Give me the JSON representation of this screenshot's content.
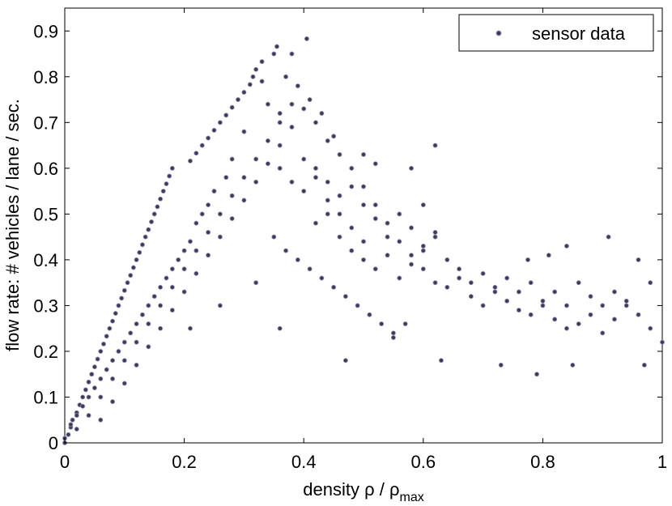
{
  "chart_data": {
    "type": "scatter",
    "title": "",
    "xlabel": {
      "base": "density ",
      "rho": "ρ",
      "sep": " / ",
      "rho2": "ρ",
      "sub": "max"
    },
    "ylabel": "flow rate: # vehicles / lane / sec.",
    "xlim": [
      0,
      1
    ],
    "ylim": [
      0,
      0.95
    ],
    "xticks": [
      "0",
      "0.2",
      "0.4",
      "0.6",
      "0.8",
      "1"
    ],
    "xtick_values": [
      0,
      0.2,
      0.4,
      0.6,
      0.8,
      1
    ],
    "yticks": [
      "0",
      "0.1",
      "0.2",
      "0.3",
      "0.4",
      "0.5",
      "0.6",
      "0.7",
      "0.8",
      "0.9"
    ],
    "ytick_values": [
      0,
      0.1,
      0.2,
      0.3,
      0.4,
      0.5,
      0.6,
      0.7,
      0.8,
      0.9
    ],
    "grid": false,
    "legend_position": "top-right",
    "marker_color": "#3c3c5a",
    "series": [
      {
        "name": "sensor data",
        "points": [
          [
            0.0,
            0.0
          ],
          [
            0.0,
            0.01
          ],
          [
            0.006,
            0.018
          ],
          [
            0.01,
            0.034
          ],
          [
            0.013,
            0.05
          ],
          [
            0.02,
            0.066
          ],
          [
            0.025,
            0.083
          ],
          [
            0.03,
            0.1
          ],
          [
            0.035,
            0.116
          ],
          [
            0.04,
            0.133
          ],
          [
            0.045,
            0.15
          ],
          [
            0.05,
            0.166
          ],
          [
            0.055,
            0.183
          ],
          [
            0.06,
            0.2
          ],
          [
            0.065,
            0.216
          ],
          [
            0.07,
            0.233
          ],
          [
            0.075,
            0.25
          ],
          [
            0.08,
            0.266
          ],
          [
            0.085,
            0.283
          ],
          [
            0.09,
            0.3
          ],
          [
            0.095,
            0.316
          ],
          [
            0.1,
            0.333
          ],
          [
            0.105,
            0.35
          ],
          [
            0.11,
            0.366
          ],
          [
            0.115,
            0.383
          ],
          [
            0.12,
            0.4
          ],
          [
            0.125,
            0.416
          ],
          [
            0.13,
            0.433
          ],
          [
            0.135,
            0.45
          ],
          [
            0.14,
            0.466
          ],
          [
            0.145,
            0.483
          ],
          [
            0.15,
            0.5
          ],
          [
            0.155,
            0.516
          ],
          [
            0.16,
            0.533
          ],
          [
            0.165,
            0.55
          ],
          [
            0.17,
            0.566
          ],
          [
            0.175,
            0.583
          ],
          [
            0.18,
            0.6
          ],
          [
            0.21,
            0.616
          ],
          [
            0.22,
            0.633
          ],
          [
            0.23,
            0.65
          ],
          [
            0.24,
            0.666
          ],
          [
            0.25,
            0.683
          ],
          [
            0.26,
            0.7
          ],
          [
            0.27,
            0.716
          ],
          [
            0.28,
            0.733
          ],
          [
            0.29,
            0.75
          ],
          [
            0.3,
            0.766
          ],
          [
            0.31,
            0.783
          ],
          [
            0.315,
            0.8
          ],
          [
            0.32,
            0.816
          ],
          [
            0.33,
            0.833
          ],
          [
            0.35,
            0.85
          ],
          [
            0.38,
            0.85
          ],
          [
            0.355,
            0.866
          ],
          [
            0.405,
            0.883
          ],
          [
            0.02,
            0.03
          ],
          [
            0.04,
            0.06
          ],
          [
            0.06,
            0.1
          ],
          [
            0.08,
            0.14
          ],
          [
            0.1,
            0.18
          ],
          [
            0.12,
            0.22
          ],
          [
            0.14,
            0.26
          ],
          [
            0.16,
            0.3
          ],
          [
            0.18,
            0.34
          ],
          [
            0.2,
            0.38
          ],
          [
            0.22,
            0.42
          ],
          [
            0.24,
            0.46
          ],
          [
            0.26,
            0.5
          ],
          [
            0.28,
            0.54
          ],
          [
            0.3,
            0.58
          ],
          [
            0.32,
            0.62
          ],
          [
            0.34,
            0.66
          ],
          [
            0.36,
            0.7
          ],
          [
            0.38,
            0.74
          ],
          [
            0.06,
            0.05
          ],
          [
            0.08,
            0.09
          ],
          [
            0.1,
            0.13
          ],
          [
            0.12,
            0.17
          ],
          [
            0.14,
            0.21
          ],
          [
            0.16,
            0.25
          ],
          [
            0.18,
            0.29
          ],
          [
            0.2,
            0.33
          ],
          [
            0.22,
            0.37
          ],
          [
            0.24,
            0.41
          ],
          [
            0.26,
            0.45
          ],
          [
            0.28,
            0.49
          ],
          [
            0.3,
            0.53
          ],
          [
            0.32,
            0.57
          ],
          [
            0.34,
            0.61
          ],
          [
            0.36,
            0.65
          ],
          [
            0.38,
            0.69
          ],
          [
            0.4,
            0.73
          ],
          [
            0.42,
            0.7
          ],
          [
            0.44,
            0.66
          ],
          [
            0.46,
            0.63
          ],
          [
            0.48,
            0.6
          ],
          [
            0.5,
            0.56
          ],
          [
            0.52,
            0.52
          ],
          [
            0.54,
            0.48
          ],
          [
            0.56,
            0.44
          ],
          [
            0.58,
            0.41
          ],
          [
            0.6,
            0.38
          ],
          [
            0.62,
            0.35
          ],
          [
            0.64,
            0.34
          ],
          [
            0.66,
            0.36
          ],
          [
            0.68,
            0.32
          ],
          [
            0.7,
            0.3
          ],
          [
            0.72,
            0.33
          ],
          [
            0.74,
            0.31
          ],
          [
            0.76,
            0.29
          ],
          [
            0.78,
            0.28
          ],
          [
            0.8,
            0.3
          ],
          [
            0.82,
            0.27
          ],
          [
            0.84,
            0.25
          ],
          [
            0.86,
            0.26
          ],
          [
            0.88,
            0.28
          ],
          [
            0.9,
            0.24
          ],
          [
            0.92,
            0.27
          ],
          [
            0.94,
            0.3
          ],
          [
            0.96,
            0.28
          ],
          [
            0.98,
            0.25
          ],
          [
            1.0,
            0.22
          ],
          [
            0.42,
            0.48
          ],
          [
            0.44,
            0.5
          ],
          [
            0.46,
            0.45
          ],
          [
            0.48,
            0.42
          ],
          [
            0.5,
            0.4
          ],
          [
            0.52,
            0.38
          ],
          [
            0.54,
            0.41
          ],
          [
            0.56,
            0.36
          ],
          [
            0.58,
            0.39
          ],
          [
            0.6,
            0.42
          ],
          [
            0.62,
            0.45
          ],
          [
            0.64,
            0.4
          ],
          [
            0.66,
            0.38
          ],
          [
            0.68,
            0.35
          ],
          [
            0.7,
            0.37
          ],
          [
            0.72,
            0.34
          ],
          [
            0.74,
            0.36
          ],
          [
            0.76,
            0.33
          ],
          [
            0.78,
            0.35
          ],
          [
            0.8,
            0.31
          ],
          [
            0.82,
            0.33
          ],
          [
            0.84,
            0.3
          ],
          [
            0.86,
            0.35
          ],
          [
            0.88,
            0.32
          ],
          [
            0.9,
            0.3
          ],
          [
            0.92,
            0.33
          ],
          [
            0.94,
            0.31
          ],
          [
            0.96,
            0.4
          ],
          [
            0.98,
            0.35
          ],
          [
            0.4,
            0.55
          ],
          [
            0.42,
            0.58
          ],
          [
            0.44,
            0.53
          ],
          [
            0.46,
            0.5
          ],
          [
            0.48,
            0.47
          ],
          [
            0.5,
            0.44
          ],
          [
            0.52,
            0.49
          ],
          [
            0.54,
            0.45
          ],
          [
            0.56,
            0.5
          ],
          [
            0.58,
            0.47
          ],
          [
            0.6,
            0.43
          ],
          [
            0.62,
            0.46
          ],
          [
            0.35,
            0.45
          ],
          [
            0.37,
            0.42
          ],
          [
            0.39,
            0.4
          ],
          [
            0.41,
            0.38
          ],
          [
            0.43,
            0.36
          ],
          [
            0.45,
            0.34
          ],
          [
            0.47,
            0.32
          ],
          [
            0.49,
            0.3
          ],
          [
            0.51,
            0.28
          ],
          [
            0.53,
            0.26
          ],
          [
            0.55,
            0.24
          ],
          [
            0.57,
            0.26
          ],
          [
            0.36,
            0.6
          ],
          [
            0.38,
            0.57
          ],
          [
            0.4,
            0.62
          ],
          [
            0.42,
            0.6
          ],
          [
            0.44,
            0.57
          ],
          [
            0.46,
            0.54
          ],
          [
            0.48,
            0.56
          ],
          [
            0.5,
            0.52
          ],
          [
            0.26,
            0.3
          ],
          [
            0.21,
            0.25
          ],
          [
            0.32,
            0.35
          ],
          [
            0.36,
            0.25
          ],
          [
            0.47,
            0.18
          ],
          [
            0.55,
            0.23
          ],
          [
            0.63,
            0.18
          ],
          [
            0.73,
            0.17
          ],
          [
            0.79,
            0.15
          ],
          [
            0.85,
            0.17
          ],
          [
            0.97,
            0.17
          ],
          [
            0.91,
            0.45
          ],
          [
            0.84,
            0.43
          ],
          [
            0.81,
            0.41
          ],
          [
            0.775,
            0.4
          ],
          [
            0.6,
            0.52
          ],
          [
            0.62,
            0.65
          ],
          [
            0.58,
            0.6
          ],
          [
            0.52,
            0.61
          ],
          [
            0.5,
            0.63
          ],
          [
            0.45,
            0.67
          ],
          [
            0.43,
            0.72
          ],
          [
            0.41,
            0.75
          ],
          [
            0.37,
            0.8
          ],
          [
            0.39,
            0.78
          ],
          [
            0.33,
            0.79
          ],
          [
            0.34,
            0.74
          ],
          [
            0.36,
            0.72
          ],
          [
            0.3,
            0.68
          ],
          [
            0.28,
            0.62
          ],
          [
            0.27,
            0.58
          ],
          [
            0.25,
            0.55
          ],
          [
            0.24,
            0.52
          ],
          [
            0.23,
            0.5
          ],
          [
            0.22,
            0.48
          ],
          [
            0.21,
            0.44
          ],
          [
            0.2,
            0.42
          ],
          [
            0.19,
            0.4
          ],
          [
            0.18,
            0.38
          ],
          [
            0.17,
            0.36
          ],
          [
            0.16,
            0.34
          ],
          [
            0.15,
            0.32
          ],
          [
            0.14,
            0.3
          ],
          [
            0.13,
            0.28
          ],
          [
            0.12,
            0.26
          ],
          [
            0.11,
            0.24
          ],
          [
            0.1,
            0.22
          ],
          [
            0.09,
            0.2
          ],
          [
            0.08,
            0.18
          ],
          [
            0.07,
            0.16
          ],
          [
            0.06,
            0.14
          ],
          [
            0.05,
            0.12
          ],
          [
            0.04,
            0.1
          ],
          [
            0.03,
            0.08
          ],
          [
            0.02,
            0.06
          ],
          [
            0.01,
            0.04
          ]
        ]
      }
    ]
  }
}
